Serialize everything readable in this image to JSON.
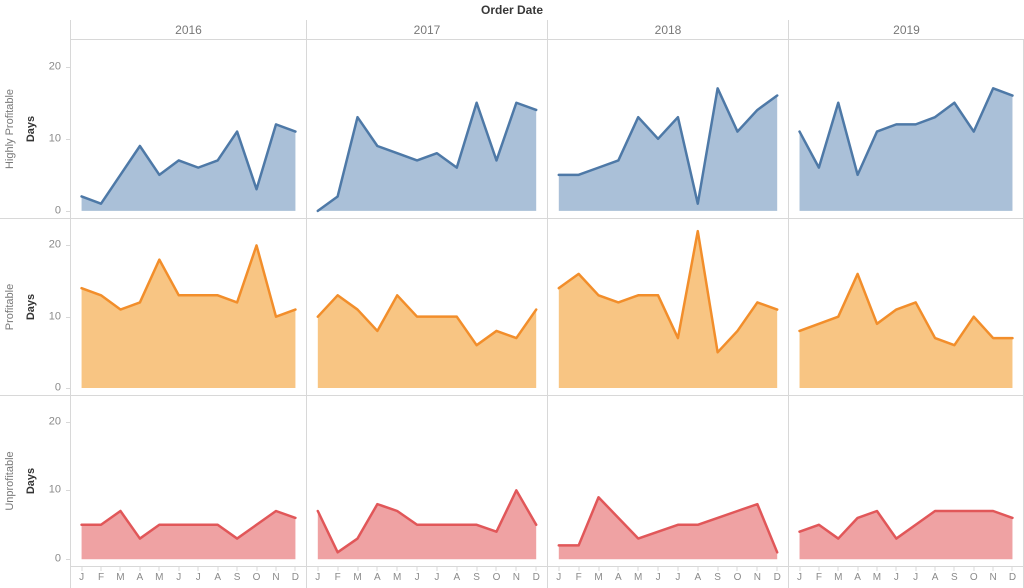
{
  "chart_data": {
    "type": "area",
    "title": "Order Date",
    "columns": [
      "2016",
      "2017",
      "2018",
      "2019"
    ],
    "months": [
      "J",
      "F",
      "M",
      "A",
      "M",
      "J",
      "J",
      "A",
      "S",
      "O",
      "N",
      "D"
    ],
    "y_axis": {
      "label": "Days",
      "ticks": [
        0,
        10,
        20
      ],
      "ylim": [
        0,
        23
      ]
    },
    "legend_position": "none",
    "grid": "off",
    "rows": [
      {
        "label": "Highly Profitable",
        "color_line": "#4e79a7",
        "color_fill": "#aac0d8",
        "series": {
          "2016": [
            2,
            1,
            5,
            9,
            5,
            7,
            6,
            7,
            11,
            3,
            12,
            11
          ],
          "2017": [
            0,
            2,
            13,
            9,
            8,
            7,
            8,
            6,
            15,
            7,
            15,
            14
          ],
          "2018": [
            5,
            5,
            6,
            7,
            13,
            10,
            13,
            1,
            17,
            11,
            14,
            16
          ],
          "2019": [
            11,
            6,
            15,
            5,
            11,
            12,
            12,
            13,
            15,
            11,
            17,
            16
          ]
        }
      },
      {
        "label": "Profitable",
        "color_line": "#f28e2b",
        "color_fill": "#f8c583",
        "series": {
          "2016": [
            14,
            13,
            11,
            12,
            18,
            13,
            13,
            13,
            12,
            20,
            10,
            11
          ],
          "2017": [
            10,
            13,
            11,
            8,
            13,
            10,
            10,
            10,
            6,
            8,
            7,
            11
          ],
          "2018": [
            14,
            16,
            13,
            12,
            13,
            13,
            7,
            22,
            5,
            8,
            12,
            11
          ],
          "2019": [
            8,
            9,
            10,
            16,
            9,
            11,
            12,
            7,
            6,
            10,
            7,
            7
          ]
        }
      },
      {
        "label": "Unprofitable",
        "color_line": "#e15759",
        "color_fill": "#efa2a3",
        "series": {
          "2016": [
            5,
            5,
            7,
            3,
            5,
            5,
            5,
            5,
            3,
            5,
            7,
            6
          ],
          "2017": [
            7,
            1,
            3,
            8,
            7,
            5,
            5,
            5,
            5,
            4,
            10,
            5
          ],
          "2018": [
            2,
            2,
            9,
            6,
            3,
            4,
            5,
            5,
            6,
            7,
            8,
            1
          ],
          "2019": [
            4,
            5,
            3,
            6,
            7,
            3,
            5,
            7,
            7,
            7,
            7,
            6
          ]
        }
      }
    ],
    "style": {
      "grid_line": "#d8d8d8",
      "tick_text": "#8a8a8a",
      "header_text": "#787878",
      "title_text": "#383838",
      "background": "#ffffff"
    }
  }
}
